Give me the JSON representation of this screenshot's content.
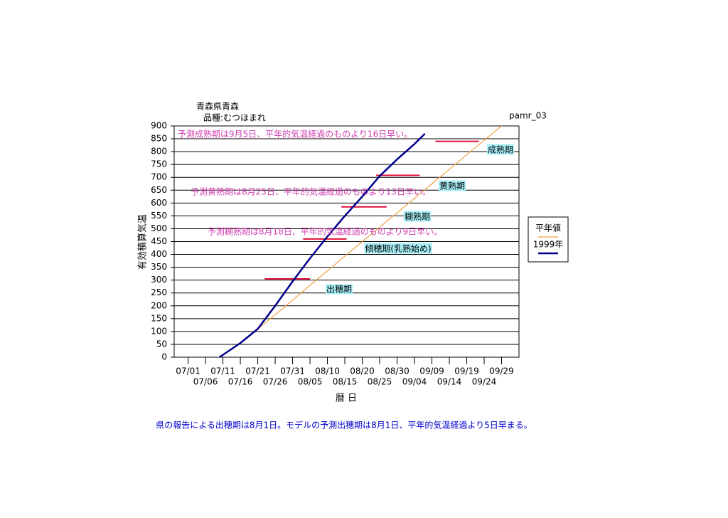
{
  "chart_data": {
    "type": "line",
    "title": "青森県青森",
    "subtitle": "品種:むつほまれ",
    "code": "pamr_03",
    "x_label": "暦 日",
    "y_label": "有効積算気温",
    "note": "県の報告による出穂期は8月1日。モデルの予測出穂期は8月1日、平年的気温経過より5日早まる。",
    "x": [
      9,
      15,
      20,
      25,
      30,
      35,
      40,
      45,
      50,
      55,
      60,
      65,
      68,
      70,
      75,
      80,
      85,
      90
    ],
    "series": [
      {
        "name": "平年値",
        "color": "#f0a040",
        "values": [
          0,
          55,
          110,
          165,
          222,
          280,
          336,
          393,
          450,
          506,
          562,
          618,
          652,
          675,
          731,
          788,
          844,
          900
        ]
      },
      {
        "name": "1999年",
        "color": "#00008b",
        "values": [
          0,
          55,
          110,
          200,
          295,
          385,
          470,
          550,
          625,
          705,
          770,
          830,
          870,
          null,
          null,
          null,
          null,
          null
        ]
      }
    ],
    "xlim": [
      -4,
      95
    ],
    "ylim": [
      0,
      900
    ],
    "yticks": [
      0,
      50,
      100,
      150,
      200,
      250,
      300,
      350,
      400,
      450,
      500,
      550,
      600,
      650,
      700,
      750,
      800,
      850,
      900
    ],
    "xticks": [
      {
        "value": 0,
        "label": "07/01"
      },
      {
        "value": 5,
        "label": "07/06"
      },
      {
        "value": 10,
        "label": "07/11"
      },
      {
        "value": 15,
        "label": "07/16"
      },
      {
        "value": 20,
        "label": "07/21"
      },
      {
        "value": 25,
        "label": "07/26"
      },
      {
        "value": 30,
        "label": "07/31"
      },
      {
        "value": 35,
        "label": "08/05"
      },
      {
        "value": 40,
        "label": "08/10"
      },
      {
        "value": 45,
        "label": "08/15"
      },
      {
        "value": 50,
        "label": "08/20"
      },
      {
        "value": 55,
        "label": "08/25"
      },
      {
        "value": 60,
        "label": "08/30"
      },
      {
        "value": 65,
        "label": "09/04"
      },
      {
        "value": 70,
        "label": "09/09"
      },
      {
        "value": 75,
        "label": "09/14"
      },
      {
        "value": 80,
        "label": "09/19"
      },
      {
        "value": 85,
        "label": "09/24"
      },
      {
        "value": 90,
        "label": "09/29"
      }
    ],
    "grid": true,
    "stages": [
      {
        "name": "出穂期",
        "value": 305,
        "start": 22,
        "end": 35
      },
      {
        "name": "傾穂期(乳熟始め)",
        "value": 460,
        "start": 33,
        "end": 45.5
      },
      {
        "name": "糊熟期",
        "value": 585,
        "start": 44,
        "end": 57
      },
      {
        "name": "黄熟期",
        "value": 708,
        "start": 54,
        "end": 66.5
      },
      {
        "name": "成熟期",
        "value": 840,
        "start": 71,
        "end": 83.5
      }
    ],
    "stage_color": "#e0103a",
    "annotations": [
      "予測成熟期は9月5日、平年的気温経過のものより16日早い。",
      "予測黄熟期は8月25日、平年的気温経過のものより13日早い。",
      "予測糊熟期は8月18日、平年的気温経過のものより9日早い。"
    ]
  }
}
